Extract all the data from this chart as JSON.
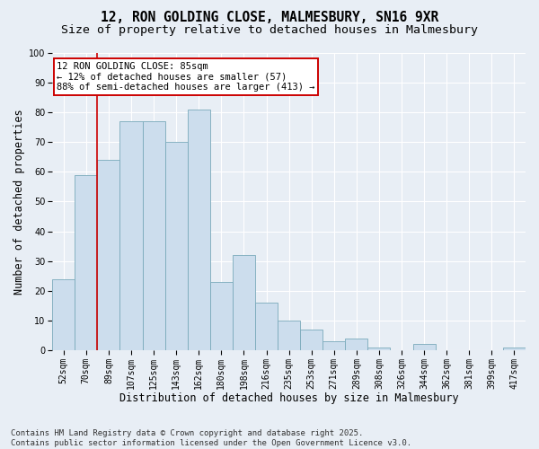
{
  "title_line1": "12, RON GOLDING CLOSE, MALMESBURY, SN16 9XR",
  "title_line2": "Size of property relative to detached houses in Malmesbury",
  "xlabel": "Distribution of detached houses by size in Malmesbury",
  "ylabel": "Number of detached properties",
  "categories": [
    "52sqm",
    "70sqm",
    "89sqm",
    "107sqm",
    "125sqm",
    "143sqm",
    "162sqm",
    "180sqm",
    "198sqm",
    "216sqm",
    "235sqm",
    "253sqm",
    "271sqm",
    "289sqm",
    "308sqm",
    "326sqm",
    "344sqm",
    "362sqm",
    "381sqm",
    "399sqm",
    "417sqm"
  ],
  "values": [
    24,
    59,
    64,
    77,
    77,
    70,
    81,
    23,
    32,
    16,
    10,
    7,
    3,
    4,
    1,
    0,
    2,
    0,
    0,
    0,
    1
  ],
  "bar_color": "#ccdded",
  "bar_edge_color": "#7aaabb",
  "vline_x": 1.5,
  "vline_color": "#cc0000",
  "annotation_text": "12 RON GOLDING CLOSE: 85sqm\n← 12% of detached houses are smaller (57)\n88% of semi-detached houses are larger (413) →",
  "annotation_box_color": "#ffffff",
  "annotation_box_edge": "#cc0000",
  "ylim": [
    0,
    100
  ],
  "yticks": [
    0,
    10,
    20,
    30,
    40,
    50,
    60,
    70,
    80,
    90,
    100
  ],
  "bg_color": "#e8eef5",
  "plot_bg_color": "#e8eef5",
  "grid_color": "#ffffff",
  "footer": "Contains HM Land Registry data © Crown copyright and database right 2025.\nContains public sector information licensed under the Open Government Licence v3.0.",
  "title_fontsize": 10.5,
  "subtitle_fontsize": 9.5,
  "axis_label_fontsize": 8.5,
  "tick_fontsize": 7,
  "annotation_fontsize": 7.5,
  "footer_fontsize": 6.5
}
